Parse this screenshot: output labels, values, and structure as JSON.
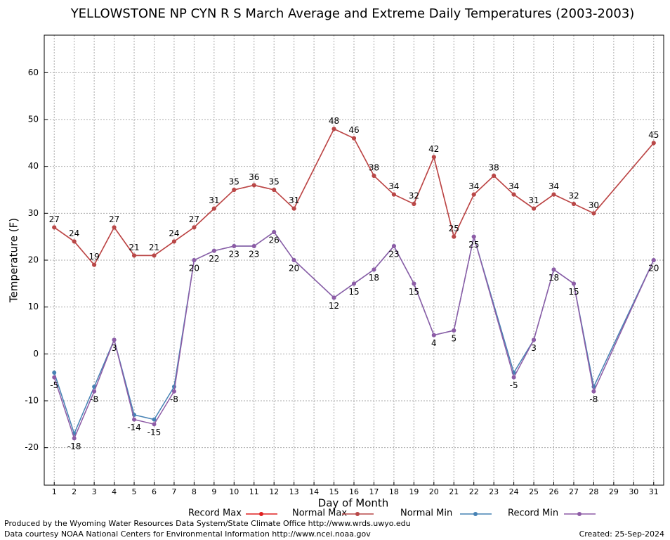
{
  "chart_data": {
    "type": "line",
    "title": "YELLOWSTONE NP CYN R S March Average and Extreme Daily Temperatures (2003-2003)",
    "x_label": "Day of Month",
    "y_label": "Temperature (F)",
    "xlim": [
      0.5,
      31.5
    ],
    "xticks": [
      1,
      2,
      3,
      4,
      5,
      6,
      7,
      8,
      9,
      10,
      11,
      12,
      13,
      14,
      15,
      16,
      17,
      18,
      19,
      20,
      21,
      22,
      23,
      24,
      25,
      26,
      27,
      28,
      29,
      30,
      31
    ],
    "ylim": [
      -28,
      68
    ],
    "yticks": [
      -20,
      -10,
      0,
      10,
      20,
      30,
      40,
      50,
      60
    ],
    "grid": true,
    "series": [
      {
        "name": "Record Max",
        "color": "#e02020",
        "labels": false,
        "x": [
          1,
          2,
          3,
          4,
          5,
          6,
          7,
          8,
          9,
          10,
          11,
          12,
          13,
          15,
          16,
          17,
          18,
          19,
          20,
          21,
          22,
          23,
          24,
          25,
          26,
          27,
          28,
          31
        ],
        "values": [
          27,
          24,
          19,
          27,
          21,
          21,
          24,
          27,
          31,
          35,
          36,
          35,
          31,
          48,
          46,
          38,
          34,
          32,
          42,
          25,
          34,
          38,
          34,
          31,
          34,
          32,
          30,
          45
        ]
      },
      {
        "name": "Normal Max",
        "color": "#b84848",
        "labels": true,
        "label_pos": "above",
        "x": [
          1,
          2,
          3,
          4,
          5,
          6,
          7,
          8,
          9,
          10,
          11,
          12,
          13,
          15,
          16,
          17,
          18,
          19,
          20,
          21,
          22,
          23,
          24,
          25,
          26,
          27,
          28,
          31
        ],
        "values": [
          27,
          24,
          19,
          27,
          21,
          21,
          24,
          27,
          31,
          35,
          36,
          35,
          31,
          48,
          46,
          38,
          34,
          32,
          42,
          25,
          34,
          38,
          34,
          31,
          34,
          32,
          30,
          45
        ]
      },
      {
        "name": "Normal Min",
        "color": "#4682b4",
        "labels": false,
        "x": [
          1,
          2,
          3,
          4,
          5,
          6,
          7,
          8,
          9,
          10,
          11,
          12,
          13,
          15,
          16,
          17,
          18,
          19,
          20,
          21,
          22,
          24,
          25,
          26,
          27,
          28,
          31
        ],
        "values": [
          -4,
          -17,
          -7,
          3,
          -13,
          -14,
          -7,
          20,
          22,
          23,
          23,
          26,
          20,
          12,
          15,
          18,
          23,
          15,
          4,
          5,
          25,
          -4,
          3,
          18,
          15,
          -7,
          20
        ]
      },
      {
        "name": "Record Min",
        "color": "#8e5ca6",
        "labels": true,
        "label_pos": "below",
        "x": [
          1,
          2,
          3,
          4,
          5,
          6,
          7,
          8,
          9,
          10,
          11,
          12,
          13,
          15,
          16,
          17,
          18,
          19,
          20,
          21,
          22,
          24,
          25,
          26,
          27,
          28,
          31
        ],
        "values": [
          -5,
          -18,
          -8,
          3,
          -14,
          -15,
          -8,
          20,
          22,
          23,
          23,
          26,
          20,
          12,
          15,
          18,
          23,
          15,
          4,
          5,
          25,
          -5,
          3,
          18,
          15,
          -8,
          20
        ]
      }
    ],
    "footer_left": [
      "Produced by the Wyoming Water Resources Data System/State Climate Office http://www.wrds.uwyo.edu",
      "Data courtesy NOAA National Centers for Environmental Information http://www.ncei.noaa.gov"
    ],
    "footer_right": "Created:  25-Sep-2024"
  }
}
